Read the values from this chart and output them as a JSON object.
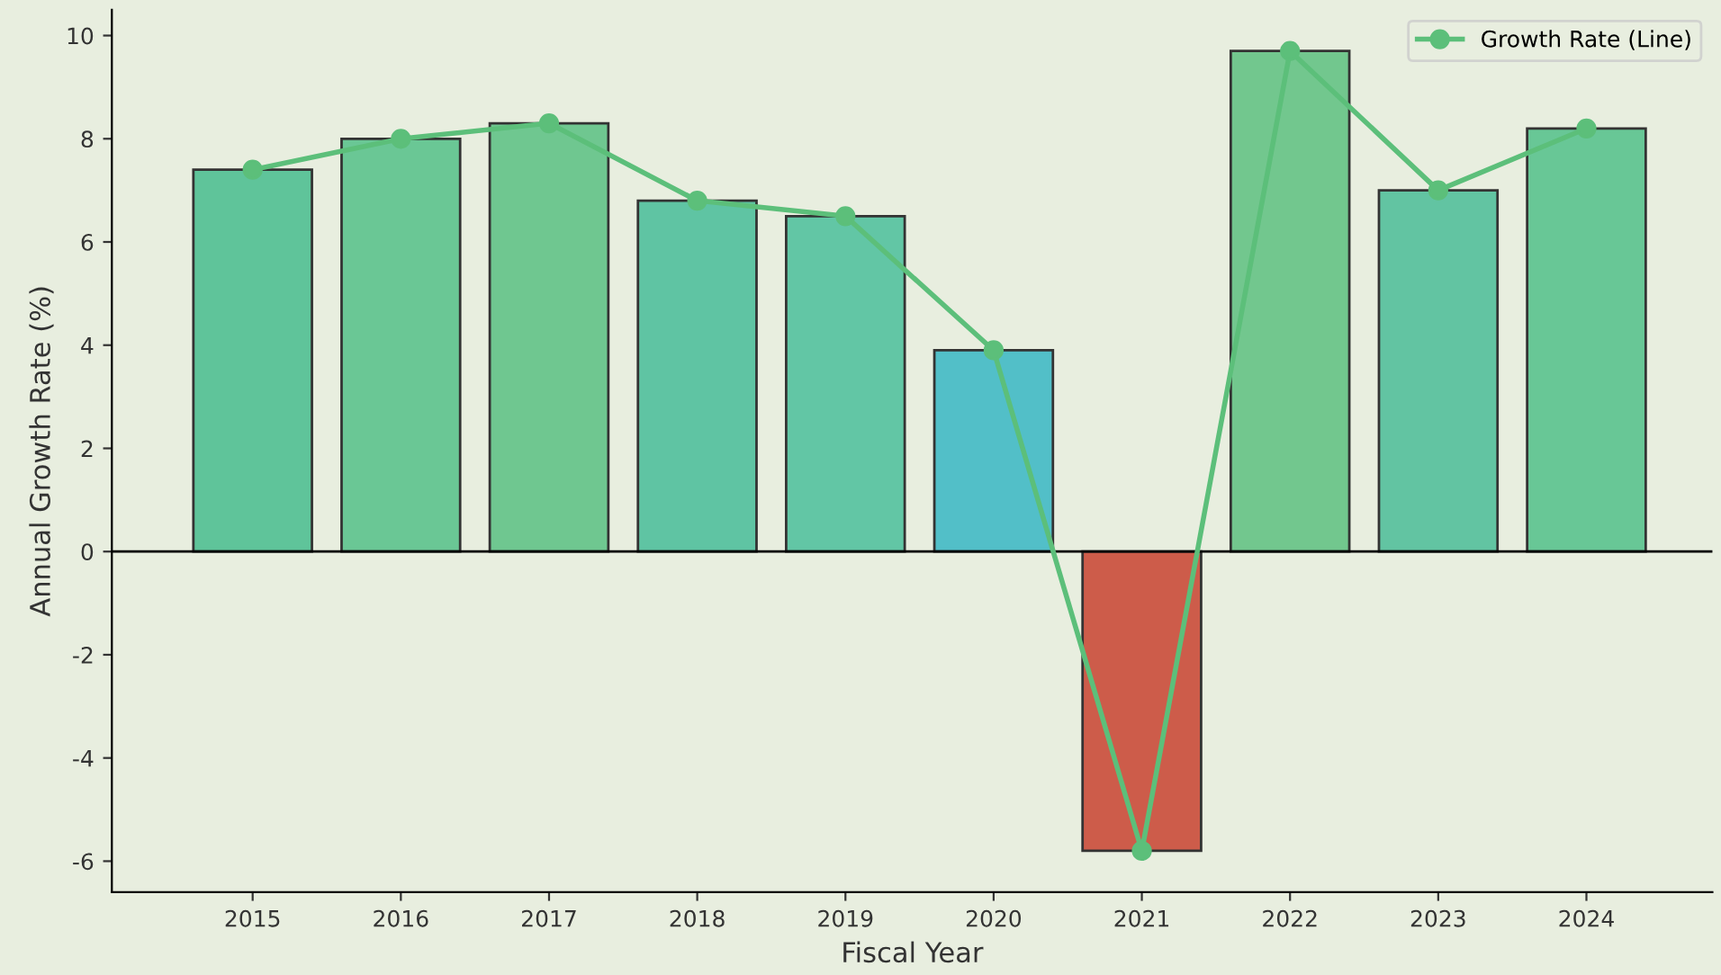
{
  "chart_data": {
    "type": "bar",
    "xlabel": "Fiscal Year",
    "ylabel": "Annual Growth Rate (%)",
    "categories": [
      "2015",
      "2016",
      "2017",
      "2018",
      "2019",
      "2020",
      "2021",
      "2022",
      "2023",
      "2024"
    ],
    "series": [
      {
        "colors": [
          "#5fc49a",
          "#6ac795",
          "#6fc790",
          "#5fc4a3",
          "#62c6a5",
          "#52bfc8",
          "#cd5c4a",
          "#72c78e",
          "#62c4a2",
          "#68c796"
        ],
        "values": [
          7.4,
          8.0,
          8.3,
          6.8,
          6.5,
          3.9,
          -5.8,
          9.7,
          7.0,
          8.2
        ]
      },
      {
        "type": "line",
        "name": "Growth Rate (Line)",
        "color": "#5cbf7a",
        "marker": "circle",
        "line_style": "solid",
        "values": [
          7.4,
          8.0,
          8.3,
          6.8,
          6.5,
          3.9,
          -5.8,
          9.7,
          7.0,
          8.2
        ]
      }
    ],
    "ylim": [
      -6.6,
      10.5
    ],
    "yticks": [
      -6,
      -4,
      -2,
      0,
      2,
      4,
      6,
      8,
      10
    ],
    "ref_lines": [
      {
        "axis": "y",
        "value": 0,
        "color": "#000000"
      }
    ],
    "grid": false,
    "legend": "top right"
  }
}
